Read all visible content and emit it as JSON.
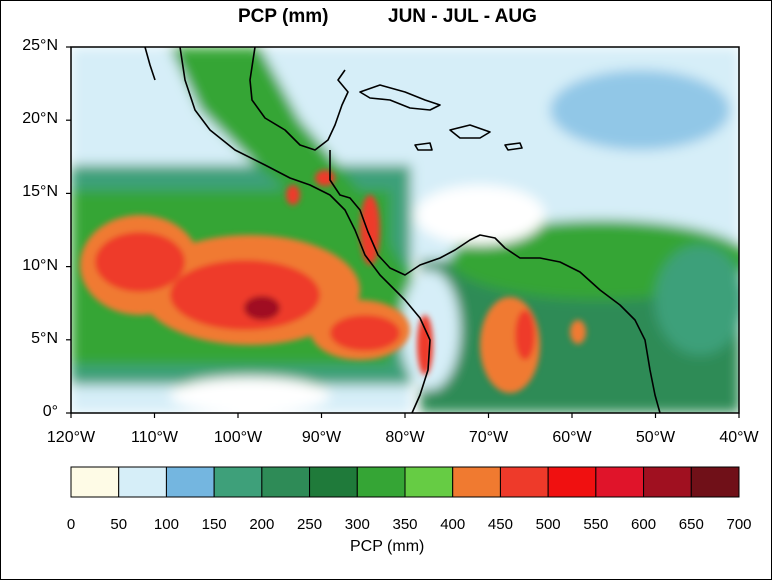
{
  "title": {
    "variable": "PCP (mm)",
    "season": "JUN - JUL - AUG"
  },
  "map": {
    "lat_range": [
      0,
      25
    ],
    "lon_range": [
      -120,
      -40
    ],
    "y_ticks": [
      {
        "value": 25,
        "label": "25°N"
      },
      {
        "value": 20,
        "label": "20°N"
      },
      {
        "value": 15,
        "label": "15°N"
      },
      {
        "value": 10,
        "label": "10°N"
      },
      {
        "value": 5,
        "label": "5°N"
      },
      {
        "value": 0,
        "label": "0°"
      }
    ],
    "x_ticks": [
      {
        "value": -120,
        "label": "120°W"
      },
      {
        "value": -110,
        "label": "110°W"
      },
      {
        "value": -100,
        "label": "100°W"
      },
      {
        "value": -90,
        "label": "90°W"
      },
      {
        "value": -80,
        "label": "80°W"
      },
      {
        "value": -70,
        "label": "70°W"
      },
      {
        "value": -60,
        "label": "60°W"
      },
      {
        "value": -50,
        "label": "50°W"
      },
      {
        "value": -40,
        "label": "40°W"
      }
    ]
  },
  "colorbar": {
    "title": "PCP (mm)",
    "levels": [
      "0",
      "50",
      "100",
      "150",
      "200",
      "250",
      "300",
      "350",
      "400",
      "450",
      "500",
      "550",
      "600",
      "650",
      "700"
    ],
    "colors": [
      "#fefbe6",
      "#d6eef8",
      "#74b6e0",
      "#3ea07a",
      "#2e8b57",
      "#1f7a3a",
      "#35a535",
      "#66cc44",
      "#f07a30",
      "#ee3a2a",
      "#f01010",
      "#e0142a",
      "#a01020",
      "#701018"
    ]
  },
  "shading_colors": {
    "ocean_light": "#d6eef8",
    "ocean_mid": "#74b6e0",
    "green_light": "#66cc44",
    "green_mid": "#35a535",
    "green_dark": "#2e8b57",
    "teal": "#3ea07a",
    "orange": "#f07a30",
    "red": "#ee3a2a",
    "red_deep": "#a01020",
    "maroon": "#701018"
  }
}
